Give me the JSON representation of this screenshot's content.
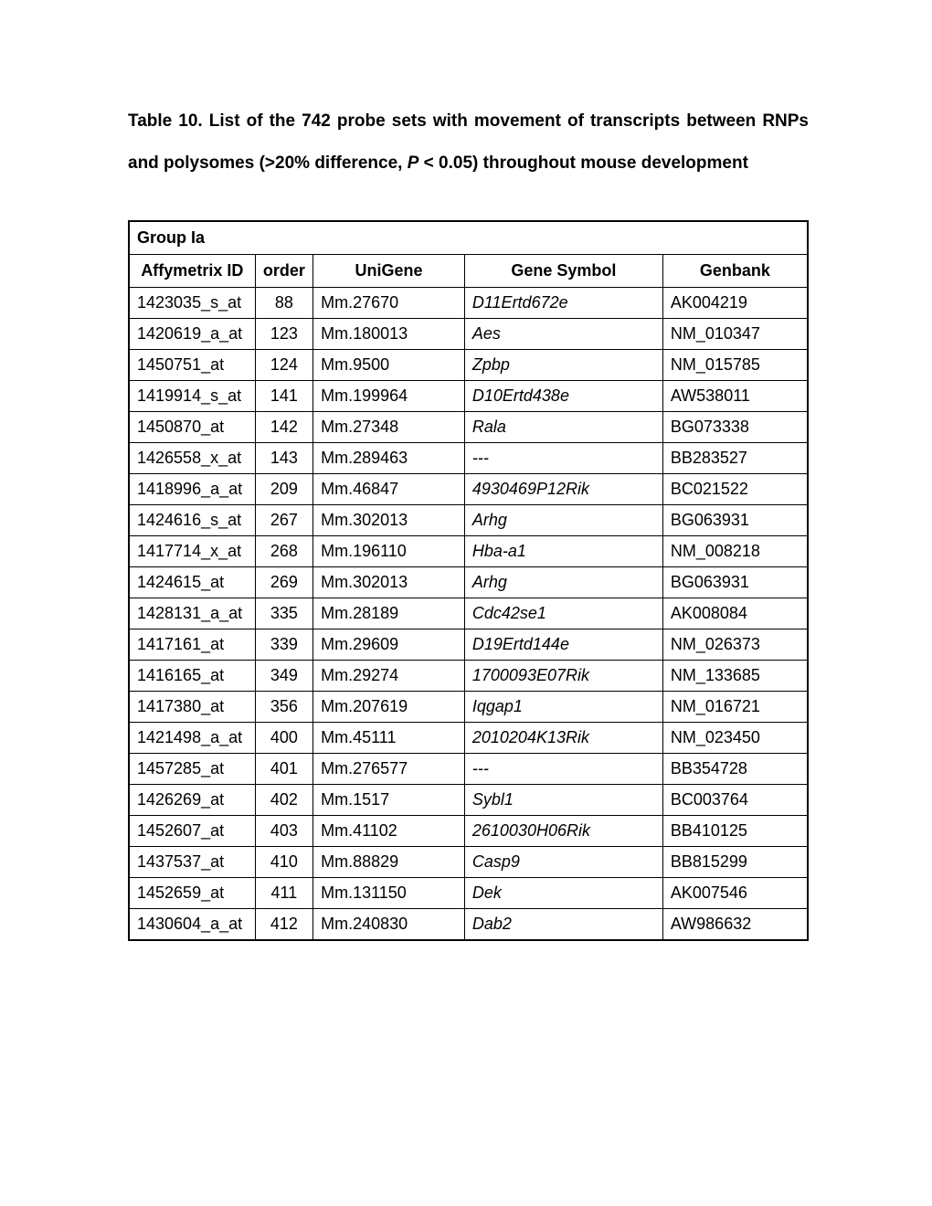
{
  "title_part1": "Table 10. List of the 742 probe sets with movement of transcripts between RNPs and polysomes (>20% difference, ",
  "title_italic": "P",
  "title_part2": " < 0.05) throughout mouse development",
  "group_label": "Group Ia",
  "columns": {
    "affymetrix": "Affymetrix ID",
    "order": "order",
    "unigene": "UniGene",
    "gene_symbol": "Gene Symbol",
    "genbank": "Genbank"
  },
  "rows": [
    {
      "affy": "1423035_s_at",
      "order": "88",
      "unigene": "Mm.27670",
      "gene": "D11Ertd672e",
      "genbank": "AK004219"
    },
    {
      "affy": "1420619_a_at",
      "order": "123",
      "unigene": "Mm.180013",
      "gene": "Aes",
      "genbank": "NM_010347"
    },
    {
      "affy": "1450751_at",
      "order": "124",
      "unigene": "Mm.9500",
      "gene": "Zpbp",
      "genbank": "NM_015785"
    },
    {
      "affy": "1419914_s_at",
      "order": "141",
      "unigene": "Mm.199964",
      "gene": "D10Ertd438e",
      "genbank": "AW538011"
    },
    {
      "affy": "1450870_at",
      "order": "142",
      "unigene": "Mm.27348",
      "gene": "Rala",
      "genbank": "BG073338"
    },
    {
      "affy": "1426558_x_at",
      "order": "143",
      "unigene": "Mm.289463",
      "gene": "---",
      "genbank": "BB283527"
    },
    {
      "affy": "1418996_a_at",
      "order": "209",
      "unigene": "Mm.46847",
      "gene": "4930469P12Rik",
      "genbank": "BC021522"
    },
    {
      "affy": "1424616_s_at",
      "order": "267",
      "unigene": "Mm.302013",
      "gene": "Arhg",
      "genbank": "BG063931"
    },
    {
      "affy": "1417714_x_at",
      "order": "268",
      "unigene": "Mm.196110",
      "gene": "Hba-a1",
      "genbank": "NM_008218"
    },
    {
      "affy": "1424615_at",
      "order": "269",
      "unigene": "Mm.302013",
      "gene": "Arhg",
      "genbank": "BG063931"
    },
    {
      "affy": "1428131_a_at",
      "order": "335",
      "unigene": "Mm.28189",
      "gene": "Cdc42se1",
      "genbank": "AK008084"
    },
    {
      "affy": "1417161_at",
      "order": "339",
      "unigene": "Mm.29609",
      "gene": "D19Ertd144e",
      "genbank": "NM_026373"
    },
    {
      "affy": "1416165_at",
      "order": "349",
      "unigene": "Mm.29274",
      "gene": "1700093E07Rik",
      "genbank": "NM_133685"
    },
    {
      "affy": "1417380_at",
      "order": "356",
      "unigene": "Mm.207619",
      "gene": "Iqgap1",
      "genbank": "NM_016721"
    },
    {
      "affy": "1421498_a_at",
      "order": "400",
      "unigene": "Mm.45111",
      "gene": "2010204K13Rik",
      "genbank": "NM_023450"
    },
    {
      "affy": "1457285_at",
      "order": "401",
      "unigene": "Mm.276577",
      "gene": "---",
      "genbank": "BB354728"
    },
    {
      "affy": "1426269_at",
      "order": "402",
      "unigene": "Mm.1517",
      "gene": "Sybl1",
      "genbank": "BC003764"
    },
    {
      "affy": "1452607_at",
      "order": "403",
      "unigene": "Mm.41102",
      "gene": "2610030H06Rik",
      "genbank": "BB410125"
    },
    {
      "affy": "1437537_at",
      "order": "410",
      "unigene": "Mm.88829",
      "gene": "Casp9",
      "genbank": "BB815299"
    },
    {
      "affy": "1452659_at",
      "order": "411",
      "unigene": "Mm.131150",
      "gene": "Dek",
      "genbank": "AK007546"
    },
    {
      "affy": "1430604_a_at",
      "order": "412",
      "unigene": "Mm.240830",
      "gene": "Dab2",
      "genbank": "AW986632"
    }
  ]
}
